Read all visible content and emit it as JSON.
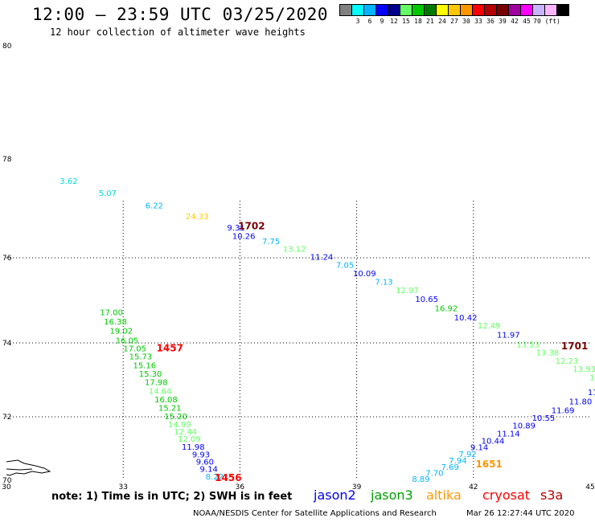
{
  "header": {
    "title": "12:00 – 23:59 UTC 03/25/2020",
    "subtitle": "12 hour collection of altimeter wave heights"
  },
  "legend": {
    "colors": [
      "#808080",
      "#00ffff",
      "#00b4ff",
      "#0000ff",
      "#00008c",
      "#64ff64",
      "#00c800",
      "#007800",
      "#ffff00",
      "#ffc800",
      "#ff9600",
      "#ff0000",
      "#b40000",
      "#780000",
      "#a000a0",
      "#ff00ff",
      "#c8b4ff",
      "#ffb4ff",
      "#000000"
    ],
    "labels": [
      {
        "text": "3",
        "after": 1
      },
      {
        "text": "6",
        "after": 2
      },
      {
        "text": "9",
        "after": 3
      },
      {
        "text": "12",
        "after": 4
      },
      {
        "text": "15",
        "after": 5
      },
      {
        "text": "18",
        "after": 6
      },
      {
        "text": "21",
        "after": 7
      },
      {
        "text": "24",
        "after": 8
      },
      {
        "text": "27",
        "after": 9
      },
      {
        "text": "30",
        "after": 10
      },
      {
        "text": "33",
        "after": 11
      },
      {
        "text": "36",
        "after": 12
      },
      {
        "text": "39",
        "after": 13
      },
      {
        "text": "42",
        "after": 14
      },
      {
        "text": "45",
        "after": 15
      },
      {
        "text": "70 (ft)",
        "after": 16
      }
    ]
  },
  "axes": {
    "lon_labels": [
      "30",
      "33",
      "36",
      "39",
      "42",
      "45"
    ],
    "lat_labels": [
      "80",
      "78",
      "76",
      "74",
      "72",
      "70"
    ]
  },
  "observations": [
    {
      "text": "3.62",
      "lon": 31.6,
      "lat": 77.5,
      "color": "#00d8d8"
    },
    {
      "text": "5.07",
      "lon": 32.6,
      "lat": 77.25,
      "color": "#00d8d8"
    },
    {
      "text": "6.22",
      "lon": 33.8,
      "lat": 77.0,
      "color": "#00b4ff"
    },
    {
      "text": "24.33",
      "lon": 34.9,
      "lat": 76.78,
      "color": "#ffc800"
    },
    {
      "text": "9.31",
      "lon": 35.9,
      "lat": 76.55,
      "color": "#0000ff"
    },
    {
      "text": "10.26",
      "lon": 36.1,
      "lat": 76.38,
      "color": "#0000ff"
    },
    {
      "text": "7.75",
      "lon": 36.8,
      "lat": 76.28,
      "color": "#00b4ff"
    },
    {
      "text": "13.12",
      "lon": 37.4,
      "lat": 76.12,
      "color": "#64ff64"
    },
    {
      "text": "11.24",
      "lon": 38.1,
      "lat": 75.95,
      "color": "#0000ff"
    },
    {
      "text": "7.05",
      "lon": 38.7,
      "lat": 75.76,
      "color": "#00b4ff"
    },
    {
      "text": "10.09",
      "lon": 39.2,
      "lat": 75.57,
      "color": "#0000ff"
    },
    {
      "text": "7.13",
      "lon": 39.7,
      "lat": 75.37,
      "color": "#00b4ff"
    },
    {
      "text": "12.97",
      "lon": 40.3,
      "lat": 75.17,
      "color": "#64ff64"
    },
    {
      "text": "10.65",
      "lon": 40.8,
      "lat": 74.96,
      "color": "#0000ff"
    },
    {
      "text": "16.92",
      "lon": 41.3,
      "lat": 74.75,
      "color": "#00c800"
    },
    {
      "text": "10.42",
      "lon": 41.8,
      "lat": 74.53,
      "color": "#0000ff"
    },
    {
      "text": "12.49",
      "lon": 42.4,
      "lat": 74.34,
      "color": "#64ff64"
    },
    {
      "text": "11.97",
      "lon": 42.9,
      "lat": 74.12,
      "color": "#0000ff"
    },
    {
      "text": "13.53",
      "lon": 43.4,
      "lat": 73.88,
      "color": "#64ff64"
    },
    {
      "text": "13.38",
      "lon": 43.9,
      "lat": 73.66,
      "color": "#64ff64"
    },
    {
      "text": "12.23",
      "lon": 44.4,
      "lat": 73.44,
      "color": "#64ff64"
    },
    {
      "text": "13.93",
      "lon": 44.85,
      "lat": 73.22,
      "color": "#64ff64"
    },
    {
      "text": "12.",
      "lon": 45.15,
      "lat": 72.99,
      "color": "#64ff64"
    },
    {
      "text": "11.",
      "lon": 45.1,
      "lat": 72.59,
      "color": "#0000ff"
    },
    {
      "text": "11.80",
      "lon": 44.75,
      "lat": 72.34,
      "color": "#0000ff"
    },
    {
      "text": "11.69",
      "lon": 44.3,
      "lat": 72.1,
      "color": "#0000ff"
    },
    {
      "text": "10.55",
      "lon": 43.8,
      "lat": 71.87,
      "color": "#0000ff"
    },
    {
      "text": "10.89",
      "lon": 43.3,
      "lat": 71.63,
      "color": "#0000ff"
    },
    {
      "text": "11.14",
      "lon": 42.9,
      "lat": 71.38,
      "color": "#0000ff"
    },
    {
      "text": "10.44",
      "lon": 42.5,
      "lat": 71.15,
      "color": "#0000ff"
    },
    {
      "text": "9.14",
      "lon": 42.15,
      "lat": 70.95,
      "color": "#0000ff"
    },
    {
      "text": "7.92",
      "lon": 41.85,
      "lat": 70.73,
      "color": "#00b4ff"
    },
    {
      "text": "7.94",
      "lon": 41.6,
      "lat": 70.53,
      "color": "#00b4ff"
    },
    {
      "text": "7.69",
      "lon": 41.4,
      "lat": 70.33,
      "color": "#00b4ff"
    },
    {
      "text": "7.70",
      "lon": 41.0,
      "lat": 70.14,
      "color": "#00b4ff"
    },
    {
      "text": "8.89",
      "lon": 40.65,
      "lat": 69.95,
      "color": "#00b4ff"
    },
    {
      "text": "17.00",
      "lon": 32.7,
      "lat": 74.65,
      "color": "#00c800"
    },
    {
      "text": "16.38",
      "lon": 32.8,
      "lat": 74.43,
      "color": "#00c800"
    },
    {
      "text": "19.02",
      "lon": 32.95,
      "lat": 74.22,
      "color": "#00c800"
    },
    {
      "text": "16.05",
      "lon": 33.1,
      "lat": 73.99,
      "color": "#00c800"
    },
    {
      "text": "17.05",
      "lon": 33.3,
      "lat": 73.77,
      "color": "#00c800"
    },
    {
      "text": "15.73",
      "lon": 33.45,
      "lat": 73.55,
      "color": "#00c800"
    },
    {
      "text": "15.16",
      "lon": 33.55,
      "lat": 73.32,
      "color": "#00c800"
    },
    {
      "text": "15.30",
      "lon": 33.7,
      "lat": 73.09,
      "color": "#00c800"
    },
    {
      "text": "17.98",
      "lon": 33.85,
      "lat": 72.86,
      "color": "#00c800"
    },
    {
      "text": "14.64",
      "lon": 33.95,
      "lat": 72.62,
      "color": "#64ff64"
    },
    {
      "text": "16.08",
      "lon": 34.1,
      "lat": 72.39,
      "color": "#00c800"
    },
    {
      "text": "15.21",
      "lon": 34.2,
      "lat": 72.16,
      "color": "#00c800"
    },
    {
      "text": "15.20",
      "lon": 34.35,
      "lat": 71.92,
      "color": "#00c800"
    },
    {
      "text": "14.99",
      "lon": 34.45,
      "lat": 71.67,
      "color": "#64ff64"
    },
    {
      "text": "12.44",
      "lon": 34.6,
      "lat": 71.44,
      "color": "#64ff64"
    },
    {
      "text": "12.09",
      "lon": 34.7,
      "lat": 71.21,
      "color": "#64ff64"
    },
    {
      "text": "11.98",
      "lon": 34.8,
      "lat": 70.96,
      "color": "#0000ff"
    },
    {
      "text": "9.93",
      "lon": 35.0,
      "lat": 70.72,
      "color": "#0000ff"
    },
    {
      "text": "9.60",
      "lon": 35.1,
      "lat": 70.49,
      "color": "#0000ff"
    },
    {
      "text": "9.14",
      "lon": 35.2,
      "lat": 70.27,
      "color": "#0000ff"
    },
    {
      "text": "8.22",
      "lon": 35.35,
      "lat": 70.03,
      "color": "#00b4ff"
    }
  ],
  "time_labels": [
    {
      "text": "1702",
      "lon": 36.3,
      "lat": 76.58,
      "color": "#780000"
    },
    {
      "text": "1701",
      "lon": 44.6,
      "lat": 73.83,
      "color": "#780000"
    },
    {
      "text": "1457",
      "lon": 34.2,
      "lat": 73.77,
      "color": "#ff0000"
    },
    {
      "text": "1456",
      "lon": 35.7,
      "lat": 69.98,
      "color": "#ff0000"
    },
    {
      "text": "1651",
      "lon": 42.4,
      "lat": 70.4,
      "color": "#ff9600"
    }
  ],
  "footer": {
    "note": "note: 1) Time is in UTC; 2) SWH is in feet",
    "satellites": [
      {
        "name": "jason2",
        "color": "#0000ff"
      },
      {
        "name": "jason3",
        "color": "#00a000"
      },
      {
        "name": "altika",
        "color": "#ff9600"
      },
      {
        "name": "cryosat",
        "color": "#ff0000"
      },
      {
        "name": "s3a",
        "color": "#b40000"
      }
    ],
    "credit": "NOAA/NESDIS Center for Satellite Applications and Research",
    "timestamp": "Mar 26 12:27:44 UTC 2020"
  }
}
